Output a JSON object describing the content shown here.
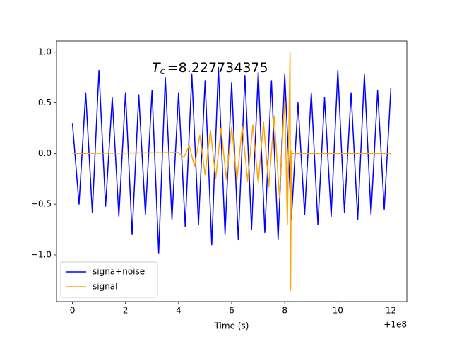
{
  "chart_data": {
    "type": "line",
    "annotation": {
      "symbol": "T",
      "subscript": "c",
      "text": "=8.227734375"
    },
    "x_label": "Time (s)",
    "x_offset_label": "+1e8",
    "xlim": [
      -0.6,
      12.6
    ],
    "xticks": [
      0,
      2,
      4,
      6,
      8,
      10,
      12
    ],
    "ylim": [
      -1.46,
      1.11
    ],
    "yticks": [
      -1.0,
      -0.5,
      0.0,
      0.5,
      1.0
    ],
    "legend": "lower left",
    "series": [
      {
        "name": "signa+noise",
        "color": "#0000ff",
        "x": [
          0,
          0.25,
          0.5,
          0.75,
          1,
          1.25,
          1.5,
          1.75,
          2,
          2.25,
          2.5,
          2.75,
          3,
          3.25,
          3.5,
          3.75,
          4,
          4.25,
          4.5,
          4.75,
          5,
          5.25,
          5.5,
          5.75,
          6,
          6.25,
          6.5,
          6.75,
          7,
          7.25,
          7.5,
          7.75,
          8,
          8.25,
          8.5,
          8.75,
          9,
          9.25,
          9.5,
          9.75,
          10,
          10.25,
          10.5,
          10.75,
          11,
          11.25,
          11.5,
          11.75,
          12
        ],
        "values": [
          0.3,
          -0.5,
          0.6,
          -0.58,
          0.82,
          -0.52,
          0.55,
          -0.62,
          0.6,
          -0.8,
          0.58,
          -0.6,
          0.62,
          -0.98,
          0.75,
          -0.65,
          0.6,
          -0.72,
          0.78,
          -0.7,
          0.72,
          -0.9,
          0.85,
          -0.8,
          0.7,
          -0.85,
          0.77,
          -0.75,
          0.8,
          -0.78,
          0.72,
          -0.85,
          0.78,
          -0.65,
          0.5,
          -0.6,
          0.6,
          -0.7,
          0.55,
          -0.62,
          0.82,
          -0.58,
          0.6,
          -0.65,
          0.78,
          -0.6,
          0.62,
          -0.55,
          0.65
        ]
      },
      {
        "name": "signal",
        "color": "#ffa500",
        "x": [
          0,
          4.0,
          4.2,
          4.4,
          4.6,
          4.8,
          5.0,
          5.2,
          5.4,
          5.6,
          5.8,
          6.0,
          6.2,
          6.4,
          6.6,
          6.8,
          7.0,
          7.2,
          7.4,
          7.6,
          7.8,
          8.0,
          8.1,
          8.2,
          8.22,
          8.25,
          8.3,
          12
        ],
        "values": [
          0,
          0.01,
          -0.04,
          0.08,
          -0.13,
          0.18,
          -0.21,
          0.23,
          -0.245,
          0.25,
          -0.255,
          0.26,
          -0.26,
          0.265,
          -0.27,
          0.28,
          -0.29,
          0.31,
          -0.33,
          0.37,
          -0.43,
          0.55,
          -0.7,
          1.0,
          -1.35,
          0.02,
          0,
          0
        ]
      }
    ]
  }
}
